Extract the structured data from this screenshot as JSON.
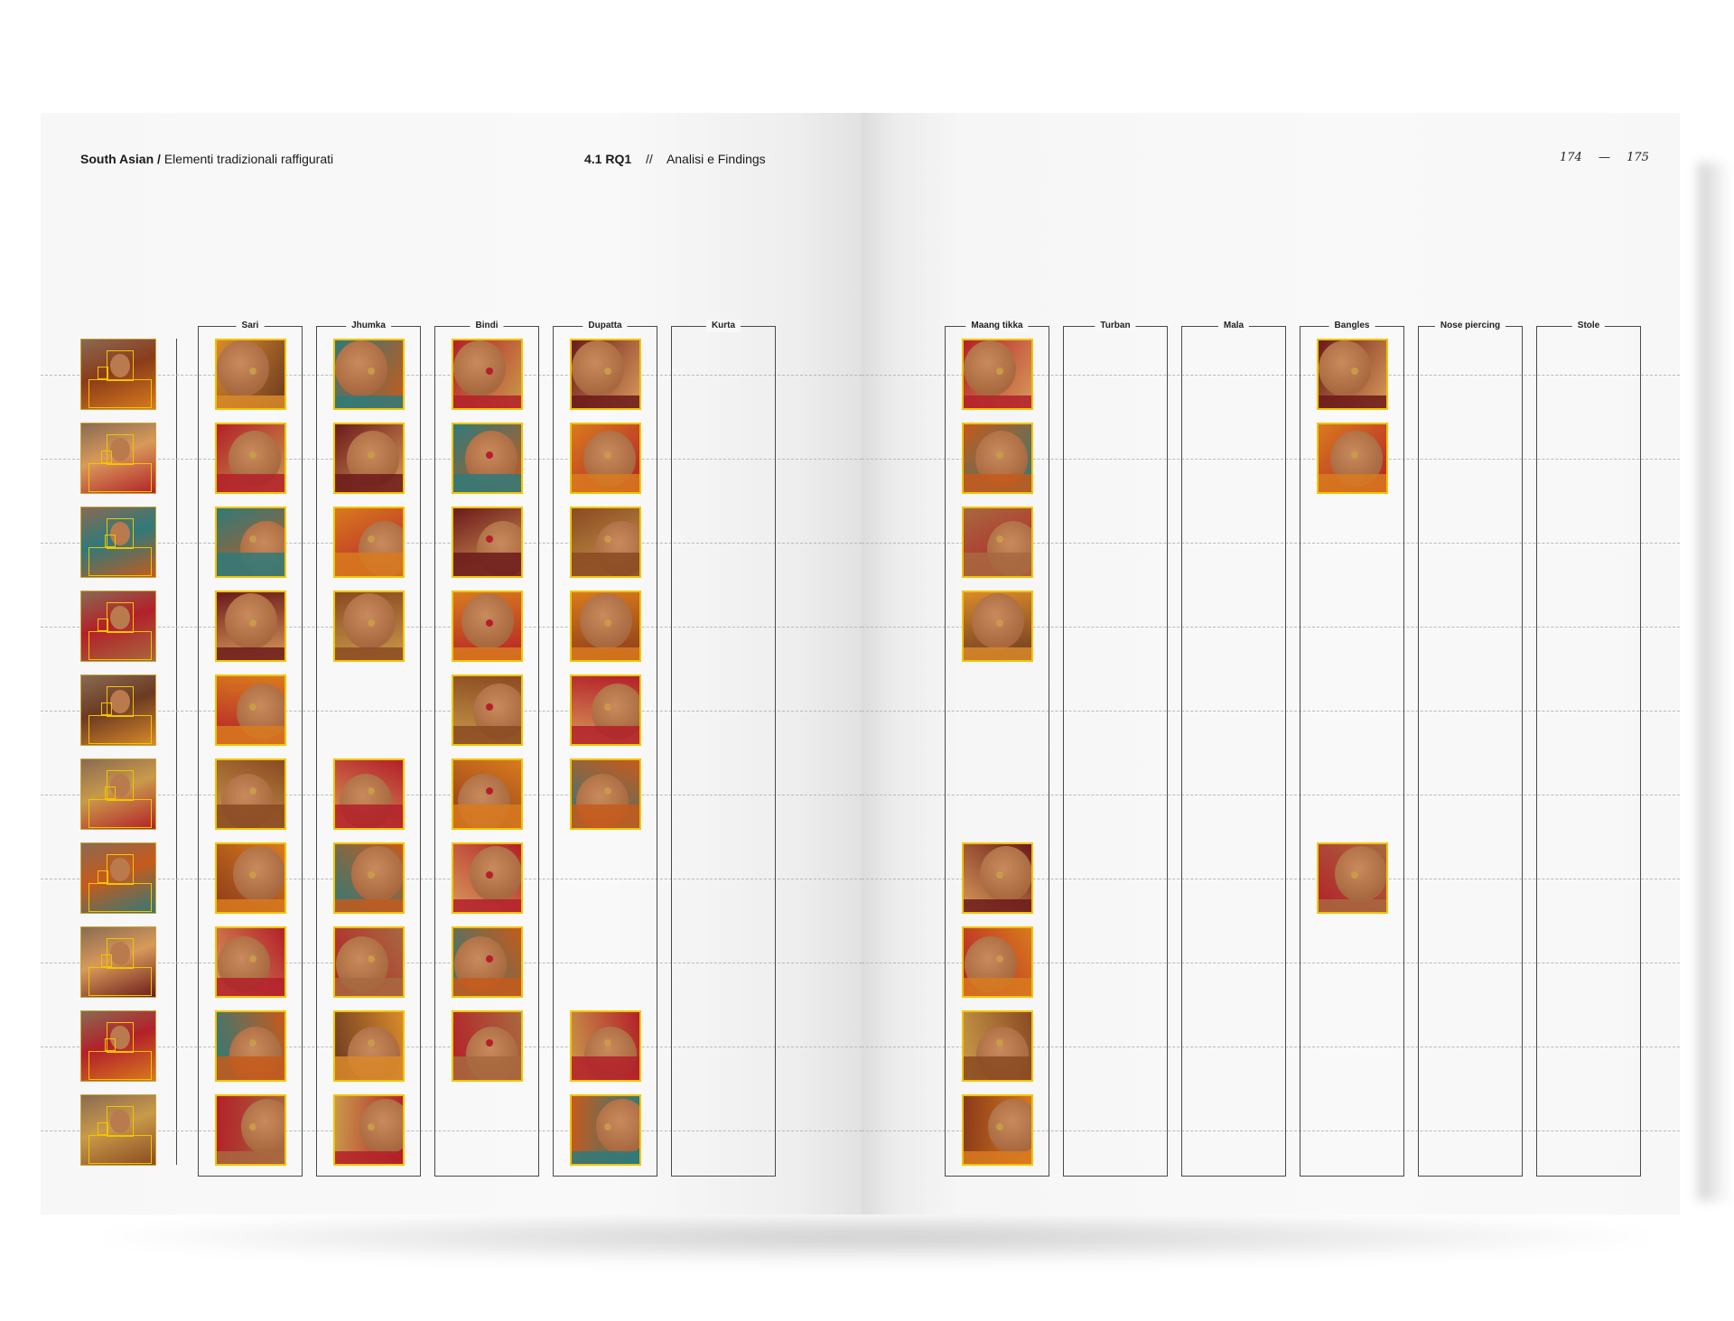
{
  "header": {
    "section_bold": "South Asian /",
    "section_title": "Elementi tradizionali raffigurati",
    "chapter_bold": "4.1 RQ1",
    "chapter_sep": "//",
    "chapter_title": "Analisi e Findings",
    "page_left": "174",
    "page_dash": "—",
    "page_right": "175"
  },
  "columns_left": [
    "Sari",
    "Jhumka",
    "Bindi",
    "Dupatta",
    "Kurta"
  ],
  "columns_right": [
    "Maang tikka",
    "Turban",
    "Mala",
    "Bangles",
    "Nose piercing",
    "Stole"
  ],
  "matrix": {
    "Sari": [
      1,
      1,
      1,
      1,
      1,
      1,
      1,
      1,
      1,
      1
    ],
    "Jhumka": [
      1,
      1,
      1,
      1,
      0,
      1,
      1,
      1,
      1,
      1
    ],
    "Bindi": [
      1,
      1,
      1,
      1,
      1,
      1,
      1,
      1,
      1,
      0
    ],
    "Dupatta": [
      1,
      1,
      1,
      1,
      1,
      1,
      0,
      0,
      1,
      1
    ],
    "Kurta": [
      0,
      0,
      0,
      0,
      0,
      0,
      0,
      0,
      0,
      0
    ],
    "Maang tikka": [
      1,
      1,
      1,
      1,
      0,
      0,
      1,
      1,
      1,
      1
    ],
    "Turban": [
      0,
      0,
      0,
      0,
      0,
      0,
      0,
      0,
      0,
      0
    ],
    "Mala": [
      0,
      0,
      0,
      0,
      0,
      0,
      0,
      0,
      0,
      0
    ],
    "Bangles": [
      1,
      1,
      0,
      0,
      0,
      0,
      1,
      0,
      0,
      0
    ],
    "Nose piercing": [
      0,
      0,
      0,
      0,
      0,
      0,
      0,
      0,
      0,
      0
    ],
    "Stole": [
      0,
      0,
      0,
      0,
      0,
      0,
      0,
      0,
      0,
      0
    ]
  },
  "colors": {
    "highlight": "#f2c400",
    "skin": "#a8683f",
    "orange": "#d97a1e",
    "red": "#b3202a",
    "gold": "#c99a4a",
    "teal": "#2f7a7a"
  }
}
